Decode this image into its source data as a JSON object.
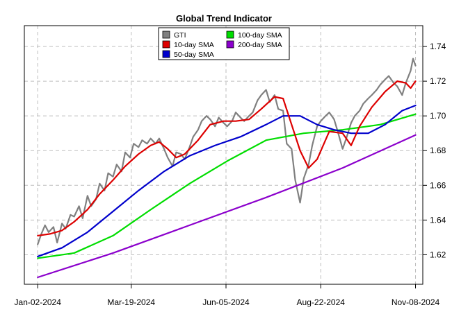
{
  "chart_data": {
    "type": "line",
    "title": "Global Trend Indicator",
    "xlabel": "",
    "ylabel": "",
    "x_tick_labels": [
      "Jan-02-2024",
      "Mar-19-2024",
      "Jun-05-2024",
      "Aug-22-2024",
      "Nov-08-2024"
    ],
    "x_tick_dates": [
      "2024-01-02",
      "2024-03-19",
      "2024-06-05",
      "2024-08-22",
      "2024-11-08"
    ],
    "xlim": [
      "2023-12-22",
      "2024-11-14"
    ],
    "y_ticks": [
      1.62,
      1.64,
      1.66,
      1.68,
      1.7,
      1.72,
      1.74
    ],
    "ylim": [
      1.603,
      1.752
    ],
    "y_axis_side": "right",
    "grid": true,
    "legend_position": "top-center",
    "series": [
      {
        "name": "GTI",
        "color": "#808080",
        "points": [
          [
            "2024-01-02",
            1.626
          ],
          [
            "2024-01-05",
            1.632
          ],
          [
            "2024-01-08",
            1.637
          ],
          [
            "2024-01-11",
            1.633
          ],
          [
            "2024-01-15",
            1.636
          ],
          [
            "2024-01-18",
            1.627
          ],
          [
            "2024-01-22",
            1.638
          ],
          [
            "2024-01-25",
            1.635
          ],
          [
            "2024-01-29",
            1.643
          ],
          [
            "2024-02-01",
            1.642
          ],
          [
            "2024-02-05",
            1.648
          ],
          [
            "2024-02-08",
            1.641
          ],
          [
            "2024-02-12",
            1.654
          ],
          [
            "2024-02-15",
            1.648
          ],
          [
            "2024-02-19",
            1.652
          ],
          [
            "2024-02-22",
            1.661
          ],
          [
            "2024-02-26",
            1.657
          ],
          [
            "2024-02-29",
            1.667
          ],
          [
            "2024-03-04",
            1.665
          ],
          [
            "2024-03-07",
            1.672
          ],
          [
            "2024-03-11",
            1.668
          ],
          [
            "2024-03-14",
            1.679
          ],
          [
            "2024-03-18",
            1.676
          ],
          [
            "2024-03-21",
            1.684
          ],
          [
            "2024-03-25",
            1.682
          ],
          [
            "2024-03-28",
            1.686
          ],
          [
            "2024-04-01",
            1.684
          ],
          [
            "2024-04-04",
            1.687
          ],
          [
            "2024-04-08",
            1.684
          ],
          [
            "2024-04-11",
            1.687
          ],
          [
            "2024-04-15",
            1.681
          ],
          [
            "2024-04-18",
            1.676
          ],
          [
            "2024-04-22",
            1.671
          ],
          [
            "2024-04-25",
            1.679
          ],
          [
            "2024-04-29",
            1.678
          ],
          [
            "2024-05-02",
            1.675
          ],
          [
            "2024-05-06",
            1.682
          ],
          [
            "2024-05-09",
            1.688
          ],
          [
            "2024-05-13",
            1.692
          ],
          [
            "2024-05-16",
            1.697
          ],
          [
            "2024-05-20",
            1.7
          ],
          [
            "2024-05-23",
            1.698
          ],
          [
            "2024-05-27",
            1.694
          ],
          [
            "2024-05-30",
            1.699
          ],
          [
            "2024-06-03",
            1.696
          ],
          [
            "2024-06-06",
            1.694
          ],
          [
            "2024-06-10",
            1.697
          ],
          [
            "2024-06-13",
            1.702
          ],
          [
            "2024-06-17",
            1.699
          ],
          [
            "2024-06-20",
            1.697
          ],
          [
            "2024-06-24",
            1.7
          ],
          [
            "2024-06-27",
            1.702
          ],
          [
            "2024-07-01",
            1.709
          ],
          [
            "2024-07-04",
            1.712
          ],
          [
            "2024-07-08",
            1.715
          ],
          [
            "2024-07-11",
            1.708
          ],
          [
            "2024-07-15",
            1.712
          ],
          [
            "2024-07-18",
            1.704
          ],
          [
            "2024-07-22",
            1.703
          ],
          [
            "2024-07-25",
            1.684
          ],
          [
            "2024-07-29",
            1.681
          ],
          [
            "2024-08-01",
            1.663
          ],
          [
            "2024-08-05",
            1.65
          ],
          [
            "2024-08-08",
            1.664
          ],
          [
            "2024-08-12",
            1.672
          ],
          [
            "2024-08-15",
            1.683
          ],
          [
            "2024-08-19",
            1.694
          ],
          [
            "2024-08-22",
            1.697
          ],
          [
            "2024-08-26",
            1.7
          ],
          [
            "2024-08-29",
            1.702
          ],
          [
            "2024-09-02",
            1.698
          ],
          [
            "2024-09-05",
            1.691
          ],
          [
            "2024-09-09",
            1.681
          ],
          [
            "2024-09-12",
            1.687
          ],
          [
            "2024-09-16",
            1.696
          ],
          [
            "2024-09-19",
            1.7
          ],
          [
            "2024-09-23",
            1.703
          ],
          [
            "2024-09-26",
            1.707
          ],
          [
            "2024-09-30",
            1.71
          ],
          [
            "2024-10-03",
            1.712
          ],
          [
            "2024-10-07",
            1.715
          ],
          [
            "2024-10-10",
            1.718
          ],
          [
            "2024-10-14",
            1.721
          ],
          [
            "2024-10-17",
            1.723
          ],
          [
            "2024-10-21",
            1.719
          ],
          [
            "2024-10-24",
            1.717
          ],
          [
            "2024-10-28",
            1.712
          ],
          [
            "2024-10-31",
            1.719
          ],
          [
            "2024-11-04",
            1.726
          ],
          [
            "2024-11-06",
            1.733
          ],
          [
            "2024-11-08",
            1.729
          ]
        ]
      },
      {
        "name": "10-day SMA",
        "color": "#dd0000",
        "points": [
          [
            "2024-01-02",
            1.631
          ],
          [
            "2024-01-12",
            1.632
          ],
          [
            "2024-01-22",
            1.634
          ],
          [
            "2024-02-01",
            1.639
          ],
          [
            "2024-02-12",
            1.646
          ],
          [
            "2024-02-22",
            1.655
          ],
          [
            "2024-03-04",
            1.663
          ],
          [
            "2024-03-14",
            1.671
          ],
          [
            "2024-03-25",
            1.678
          ],
          [
            "2024-04-04",
            1.683
          ],
          [
            "2024-04-11",
            1.685
          ],
          [
            "2024-04-18",
            1.681
          ],
          [
            "2024-04-25",
            1.676
          ],
          [
            "2024-05-02",
            1.678
          ],
          [
            "2024-05-13",
            1.686
          ],
          [
            "2024-05-23",
            1.695
          ],
          [
            "2024-06-03",
            1.697
          ],
          [
            "2024-06-13",
            1.697
          ],
          [
            "2024-06-24",
            1.698
          ],
          [
            "2024-07-04",
            1.704
          ],
          [
            "2024-07-15",
            1.711
          ],
          [
            "2024-07-22",
            1.71
          ],
          [
            "2024-07-29",
            1.695
          ],
          [
            "2024-08-05",
            1.68
          ],
          [
            "2024-08-12",
            1.67
          ],
          [
            "2024-08-19",
            1.675
          ],
          [
            "2024-08-29",
            1.691
          ],
          [
            "2024-09-09",
            1.69
          ],
          [
            "2024-09-16",
            1.683
          ],
          [
            "2024-09-23",
            1.694
          ],
          [
            "2024-10-03",
            1.705
          ],
          [
            "2024-10-14",
            1.714
          ],
          [
            "2024-10-24",
            1.72
          ],
          [
            "2024-10-31",
            1.719
          ],
          [
            "2024-11-04",
            1.716
          ],
          [
            "2024-11-08",
            1.72
          ]
        ]
      },
      {
        "name": "50-day SMA",
        "color": "#0000cc",
        "points": [
          [
            "2024-01-02",
            1.619
          ],
          [
            "2024-01-22",
            1.624
          ],
          [
            "2024-02-12",
            1.633
          ],
          [
            "2024-03-04",
            1.645
          ],
          [
            "2024-03-25",
            1.657
          ],
          [
            "2024-04-15",
            1.668
          ],
          [
            "2024-05-06",
            1.677
          ],
          [
            "2024-05-27",
            1.683
          ],
          [
            "2024-06-17",
            1.688
          ],
          [
            "2024-07-08",
            1.695
          ],
          [
            "2024-07-22",
            1.7
          ],
          [
            "2024-08-05",
            1.7
          ],
          [
            "2024-08-19",
            1.695
          ],
          [
            "2024-09-02",
            1.692
          ],
          [
            "2024-09-16",
            1.69
          ],
          [
            "2024-09-30",
            1.69
          ],
          [
            "2024-10-14",
            1.695
          ],
          [
            "2024-10-28",
            1.703
          ],
          [
            "2024-11-08",
            1.706
          ]
        ]
      },
      {
        "name": "100-day SMA",
        "color": "#00dd00",
        "points": [
          [
            "2024-01-02",
            1.618
          ],
          [
            "2024-02-01",
            1.621
          ],
          [
            "2024-03-04",
            1.631
          ],
          [
            "2024-04-04",
            1.646
          ],
          [
            "2024-05-06",
            1.661
          ],
          [
            "2024-06-06",
            1.674
          ],
          [
            "2024-07-08",
            1.686
          ],
          [
            "2024-08-08",
            1.69
          ],
          [
            "2024-09-09",
            1.692
          ],
          [
            "2024-10-10",
            1.695
          ],
          [
            "2024-11-08",
            1.701
          ]
        ]
      },
      {
        "name": "200-day SMA",
        "color": "#8b00cc",
        "points": [
          [
            "2024-01-02",
            1.607
          ],
          [
            "2024-03-04",
            1.621
          ],
          [
            "2024-05-06",
            1.637
          ],
          [
            "2024-07-08",
            1.653
          ],
          [
            "2024-09-09",
            1.67
          ],
          [
            "2024-11-08",
            1.689
          ]
        ]
      }
    ]
  }
}
